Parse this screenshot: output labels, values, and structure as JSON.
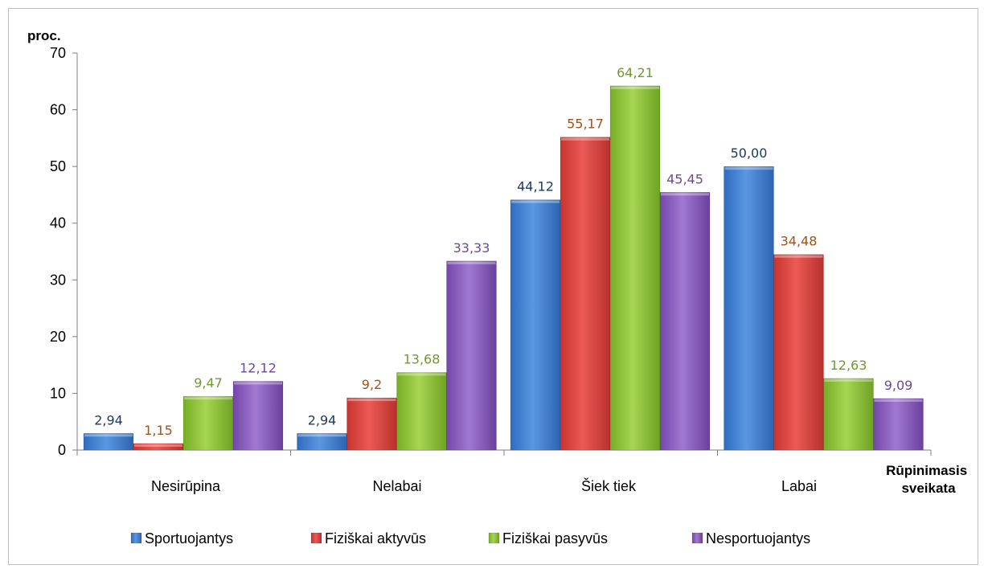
{
  "chart_data": {
    "type": "bar",
    "ylabel": "proc.",
    "xlabel": "Rūpinimasis sveikata",
    "xlabel_lines": [
      "Rūpinimasis",
      "sveikata"
    ],
    "categories": [
      "Nesirūpina",
      "Nelabai",
      "Šiek tiek",
      "Labai"
    ],
    "ylim": [
      0,
      70
    ],
    "yticks": [
      0,
      10,
      20,
      30,
      40,
      50,
      60,
      70
    ],
    "grid": false,
    "legend_position": "bottom",
    "series": [
      {
        "name": "Sportuojantys",
        "color": "#4a86d6",
        "label_color": "#1f3864",
        "values": [
          2.94,
          2.94,
          44.12,
          50.0
        ],
        "labels": [
          "2,94",
          "2,94",
          "44,12",
          "50,00"
        ]
      },
      {
        "name": "Fiziškai aktyvūs",
        "color": "#e04a46",
        "label_color": "#a0521c",
        "values": [
          1.15,
          9.2,
          55.17,
          34.48
        ],
        "labels": [
          "1,15",
          "9,2",
          "55,17",
          "34,48"
        ]
      },
      {
        "name": "Fiziškai pasyvūs",
        "color": "#8fc33c",
        "label_color": "#6f9a2e",
        "values": [
          9.47,
          13.68,
          64.21,
          12.63
        ],
        "labels": [
          "9,47",
          "13,68",
          "64,21",
          "12,63"
        ]
      },
      {
        "name": "Nesportuojantys",
        "color": "#8c5fbe",
        "label_color": "#6b4a9a",
        "values": [
          12.12,
          33.33,
          45.45,
          9.09
        ],
        "labels": [
          "12,12",
          "33,33",
          "45,45",
          "9,09"
        ]
      }
    ]
  }
}
